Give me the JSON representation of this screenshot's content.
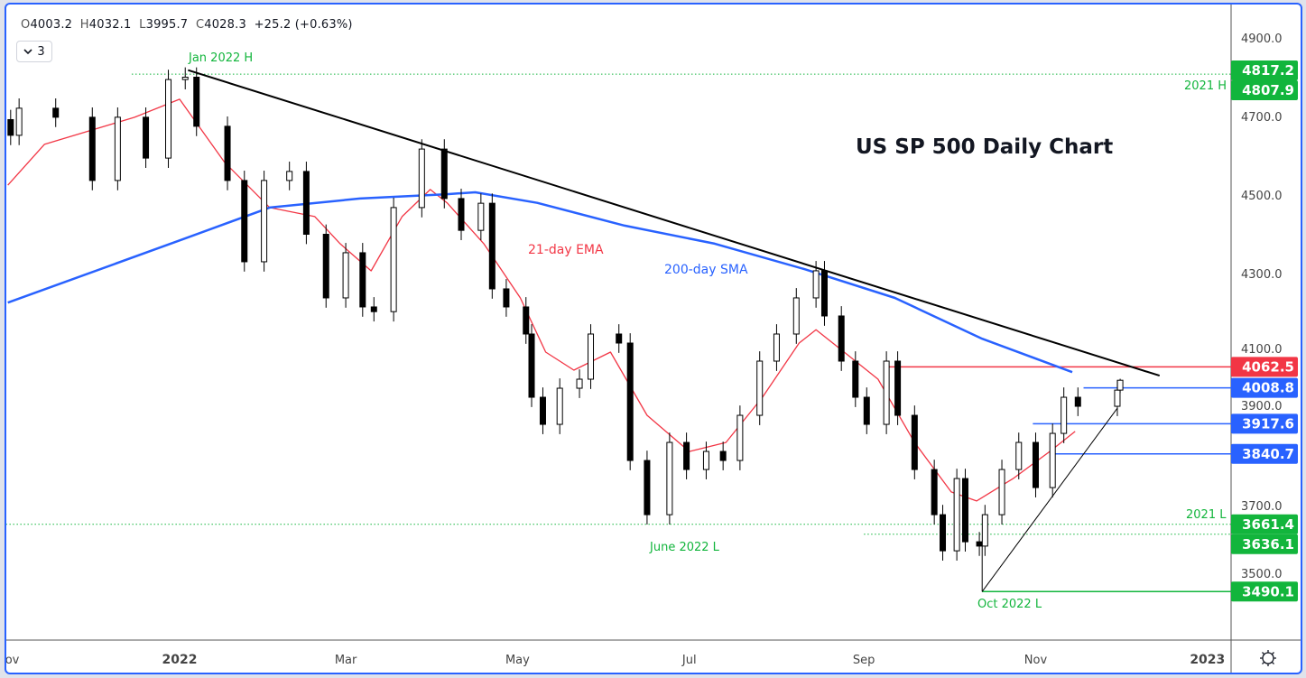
{
  "header": {
    "ohlc": {
      "o_label": "O",
      "o": "4003.2",
      "h_label": "H",
      "h": "4032.1",
      "l_label": "L",
      "l": "3995.7",
      "c_label": "C",
      "c": "4028.3",
      "change": "+25.2 (+0.63%)"
    },
    "indicator_count": "3"
  },
  "settings_icon": "gear-icon",
  "chart_data": {
    "type": "candlestick",
    "title": "US SP 500 Daily Chart",
    "ylim": [
      3350,
      4950
    ],
    "xlim": [
      "2021-10-30",
      "2023-01-14"
    ],
    "y_ticks": [
      "4900.0",
      "4700.0",
      "4500.0",
      "4300.0",
      "4100.0",
      "3900.0",
      "3700.0",
      "3500.0"
    ],
    "x_ticks": [
      {
        "label": "Nov",
        "date": "2021-11-01"
      },
      {
        "label": "2022",
        "date": "2022-01-01"
      },
      {
        "label": "Mar",
        "date": "2022-03-01"
      },
      {
        "label": "May",
        "date": "2022-05-01"
      },
      {
        "label": "Jul",
        "date": "2022-07-01"
      },
      {
        "label": "Sep",
        "date": "2022-09-01"
      },
      {
        "label": "Nov",
        "date": "2022-11-01"
      },
      {
        "label": "2023",
        "date": "2023-01-01"
      }
    ],
    "grid": false,
    "colors": {
      "up_body": "#ffffff",
      "down_body": "#000000",
      "ema": "#f23645",
      "sma": "#2962ff",
      "trend": "#000000",
      "green": "#12b53c",
      "red": "#f23645",
      "blue": "#2962ff"
    },
    "closes": [
      [
        "2021-11-02",
        4652
      ],
      [
        "2021-11-05",
        4721
      ],
      [
        "2021-11-18",
        4698
      ],
      [
        "2021-12-01",
        4537
      ],
      [
        "2021-12-10",
        4698
      ],
      [
        "2021-12-20",
        4594
      ],
      [
        "2021-12-28",
        4794
      ],
      [
        "2022-01-03",
        4800
      ],
      [
        "2022-01-07",
        4675
      ],
      [
        "2022-01-18",
        4537
      ],
      [
        "2022-01-24",
        4330
      ],
      [
        "2022-01-31",
        4537
      ],
      [
        "2022-02-09",
        4560
      ],
      [
        "2022-02-15",
        4400
      ],
      [
        "2022-02-22",
        4238
      ],
      [
        "2022-03-01",
        4353
      ],
      [
        "2022-03-07",
        4215
      ],
      [
        "2022-03-11",
        4203
      ],
      [
        "2022-03-18",
        4468
      ],
      [
        "2022-03-28",
        4617
      ],
      [
        "2022-04-05",
        4491
      ],
      [
        "2022-04-11",
        4410
      ],
      [
        "2022-04-18",
        4479
      ],
      [
        "2022-04-22",
        4261
      ],
      [
        "2022-04-27",
        4215
      ],
      [
        "2022-05-04",
        4146
      ],
      [
        "2022-05-06",
        3985
      ],
      [
        "2022-05-10",
        3916
      ],
      [
        "2022-05-16",
        4008
      ],
      [
        "2022-05-23",
        4031
      ],
      [
        "2022-05-27",
        4146
      ],
      [
        "2022-06-06",
        4123
      ],
      [
        "2022-06-10",
        3824
      ],
      [
        "2022-06-16",
        3686
      ],
      [
        "2022-06-24",
        3870
      ],
      [
        "2022-06-30",
        3801
      ],
      [
        "2022-07-07",
        3847
      ],
      [
        "2022-07-13",
        3824
      ],
      [
        "2022-07-19",
        3939
      ],
      [
        "2022-07-26",
        4077
      ],
      [
        "2022-08-01",
        4146
      ],
      [
        "2022-08-08",
        4238
      ],
      [
        "2022-08-15",
        4307
      ],
      [
        "2022-08-18",
        4192
      ],
      [
        "2022-08-24",
        4077
      ],
      [
        "2022-08-29",
        3985
      ],
      [
        "2022-09-02",
        3916
      ],
      [
        "2022-09-09",
        4077
      ],
      [
        "2022-09-13",
        3939
      ],
      [
        "2022-09-19",
        3801
      ],
      [
        "2022-09-26",
        3686
      ],
      [
        "2022-09-29",
        3594
      ],
      [
        "2022-10-04",
        3778
      ],
      [
        "2022-10-07",
        3617
      ],
      [
        "2022-10-12",
        3606
      ],
      [
        "2022-10-14",
        3686
      ],
      [
        "2022-10-20",
        3801
      ],
      [
        "2022-10-26",
        3870
      ],
      [
        "2022-11-01",
        3755
      ],
      [
        "2022-11-07",
        3893
      ],
      [
        "2022-11-11",
        3985
      ],
      [
        "2022-11-16",
        3962
      ],
      [
        "2022-11-30",
        4003.2
      ]
    ],
    "last_candle": {
      "date": "2022-12-01",
      "open": 4003.2,
      "high": 4032.1,
      "low": 3995.7,
      "close": 4028.3
    },
    "series": [
      {
        "name": "21-day EMA",
        "points": [
          [
            "2021-11-01",
            4525
          ],
          [
            "2021-11-14",
            4629
          ],
          [
            "2021-12-16",
            4698
          ],
          [
            "2022-01-01",
            4744
          ],
          [
            "2022-01-17",
            4583
          ],
          [
            "2022-02-02",
            4468
          ],
          [
            "2022-02-18",
            4445
          ],
          [
            "2022-02-27",
            4376
          ],
          [
            "2022-03-10",
            4307
          ],
          [
            "2022-03-21",
            4445
          ],
          [
            "2022-03-31",
            4514
          ],
          [
            "2022-04-06",
            4480
          ],
          [
            "2022-04-19",
            4376
          ],
          [
            "2022-05-02",
            4238
          ],
          [
            "2022-05-11",
            4100
          ],
          [
            "2022-05-21",
            4054
          ],
          [
            "2022-06-03",
            4100
          ],
          [
            "2022-06-16",
            3939
          ],
          [
            "2022-07-01",
            3847
          ],
          [
            "2022-07-14",
            3870
          ],
          [
            "2022-07-27",
            3985
          ],
          [
            "2022-08-09",
            4123
          ],
          [
            "2022-08-15",
            4157
          ],
          [
            "2022-08-25",
            4100
          ],
          [
            "2022-09-06",
            4031
          ],
          [
            "2022-09-19",
            3870
          ],
          [
            "2022-10-02",
            3744
          ],
          [
            "2022-10-11",
            3721
          ],
          [
            "2022-10-24",
            3778
          ],
          [
            "2022-11-06",
            3847
          ],
          [
            "2022-11-15",
            3898
          ]
        ]
      },
      {
        "name": "200-day SMA",
        "points": [
          [
            "2021-11-01",
            4226
          ],
          [
            "2022-01-02",
            4387
          ],
          [
            "2022-02-02",
            4468
          ],
          [
            "2022-03-06",
            4491
          ],
          [
            "2022-04-06",
            4502
          ],
          [
            "2022-04-16",
            4507
          ],
          [
            "2022-05-08",
            4480
          ],
          [
            "2022-06-08",
            4422
          ],
          [
            "2022-07-10",
            4376
          ],
          [
            "2022-08-11",
            4311
          ],
          [
            "2022-09-12",
            4238
          ],
          [
            "2022-10-13",
            4134
          ],
          [
            "2022-11-14",
            4049
          ]
        ]
      }
    ],
    "trendlines": [
      {
        "from": [
          "2022-01-04",
          4818
        ],
        "to": [
          "2022-12-15",
          4040
        ],
        "color": "#000000"
      },
      {
        "from": [
          "2022-10-13",
          3490.1
        ],
        "to": [
          "2022-11-30",
          3957
        ],
        "color": "#000000"
      }
    ],
    "levels": [
      {
        "price": 4817.2,
        "label_color": "#12b53c",
        "style": "none"
      },
      {
        "price": 4807.9,
        "from": "2021-12-15",
        "label_color": "#12b53c",
        "style": "dotted"
      },
      {
        "price": 4062.5,
        "from": "2022-09-10",
        "label_color": "#f23645",
        "style": "solid"
      },
      {
        "price": 4008.8,
        "from": "2022-11-18",
        "label_color": "#2962ff",
        "style": "solid"
      },
      {
        "price": 3917.6,
        "from": "2022-10-31",
        "label_color": "#2962ff",
        "style": "solid"
      },
      {
        "price": 3840.7,
        "from": "2022-11-08",
        "label_color": "#2962ff",
        "style": "solid"
      },
      {
        "price": 3661.4,
        "from": "2021-10-30",
        "label_color": "#12b53c",
        "style": "dotted"
      },
      {
        "price": 3636.1,
        "from": "2022-09-01",
        "label_color": "#12b53c",
        "style": "dotted"
      },
      {
        "price": 3490.1,
        "from": "2022-10-13",
        "label_color": "#12b53c",
        "style": "solid"
      }
    ],
    "level_labels": [
      "4817.2",
      "4807.9",
      "4062.5",
      "4008.8",
      "3917.6",
      "3840.7",
      "3661.4",
      "3636.1",
      "3490.1"
    ],
    "annotations": {
      "jan_high": "Jan 2022 H",
      "high_2021": "2021 H",
      "low_2021": "2021 L",
      "june_low": "June 2022 L",
      "oct_low": "Oct 2022 L",
      "ema_label": "21-day EMA",
      "sma_label": "200-day SMA"
    }
  }
}
